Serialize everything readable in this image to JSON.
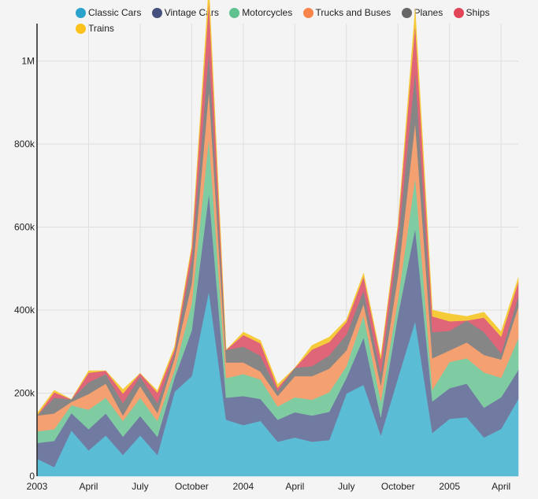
{
  "chart_data": {
    "type": "area",
    "stacked": true,
    "title": "",
    "xlabel": "",
    "ylabel": "",
    "ylim": [
      0,
      1090000
    ],
    "grid": true,
    "legend_position": "top",
    "x": [
      "2003-01",
      "2003-02",
      "2003-03",
      "2003-04",
      "2003-05",
      "2003-06",
      "2003-07",
      "2003-08",
      "2003-09",
      "2003-10",
      "2003-11",
      "2003-12",
      "2004-01",
      "2004-02",
      "2004-03",
      "2004-04",
      "2004-05",
      "2004-06",
      "2004-07",
      "2004-08",
      "2004-09",
      "2004-10",
      "2004-11",
      "2004-12",
      "2005-01",
      "2005-02",
      "2005-03",
      "2005-04",
      "2005-05"
    ],
    "x_ticks": [
      {
        "index": 0,
        "label": "2003"
      },
      {
        "index": 3,
        "label": "April"
      },
      {
        "index": 6,
        "label": "July"
      },
      {
        "index": 9,
        "label": "October"
      },
      {
        "index": 12,
        "label": "2004"
      },
      {
        "index": 15,
        "label": "April"
      },
      {
        "index": 18,
        "label": "July"
      },
      {
        "index": 21,
        "label": "October"
      },
      {
        "index": 24,
        "label": "2005"
      },
      {
        "index": 27,
        "label": "April"
      }
    ],
    "y_ticks": [
      {
        "value": 0,
        "label": "0"
      },
      {
        "value": 200000,
        "label": "200k"
      },
      {
        "value": 400000,
        "label": "400k"
      },
      {
        "value": 600000,
        "label": "600k"
      },
      {
        "value": 800000,
        "label": "800k"
      },
      {
        "value": 1000000,
        "label": "1M"
      }
    ],
    "series": [
      {
        "name": "Classic Cars",
        "color": "#5bbcd6",
        "values": [
          42000,
          22000,
          110000,
          62000,
          98000,
          51000,
          98000,
          51000,
          203000,
          241000,
          445000,
          136000,
          123000,
          133000,
          83000,
          93000,
          83000,
          87000,
          199000,
          220000,
          98000,
          237000,
          373000,
          104000,
          138000,
          142000,
          93000,
          114000,
          186000
        ]
      },
      {
        "name": "Vintage Cars",
        "color": "#717ba1",
        "values": [
          38000,
          63000,
          42000,
          51000,
          53000,
          44000,
          47000,
          44000,
          34000,
          110000,
          237000,
          53000,
          70000,
          53000,
          53000,
          61000,
          63000,
          68000,
          38000,
          114000,
          44000,
          152000,
          224000,
          76000,
          74000,
          81000,
          72000,
          76000,
          70000
        ]
      },
      {
        "name": "Motorcycles",
        "color": "#7fcca3",
        "values": [
          28000,
          28000,
          19000,
          47000,
          38000,
          38000,
          44000,
          38000,
          19000,
          66000,
          133000,
          47000,
          53000,
          47000,
          32000,
          36000,
          38000,
          47000,
          28000,
          53000,
          38000,
          38000,
          123000,
          28000,
          63000,
          61000,
          85000,
          47000,
          76000
        ]
      },
      {
        "name": "Trucks and Buses",
        "color": "#f5a070",
        "values": [
          38000,
          38000,
          8000,
          38000,
          34000,
          13000,
          28000,
          19000,
          28000,
          47000,
          114000,
          38000,
          28000,
          19000,
          25000,
          51000,
          57000,
          57000,
          38000,
          28000,
          38000,
          57000,
          133000,
          76000,
          28000,
          38000,
          42000,
          44000,
          76000
        ]
      },
      {
        "name": "Planes",
        "color": "#868686",
        "values": [
          0,
          38000,
          6000,
          28000,
          23000,
          30000,
          23000,
          24000,
          12000,
          57000,
          97000,
          30000,
          38000,
          38000,
          12000,
          20000,
          24000,
          32000,
          38000,
          32000,
          30000,
          80000,
          123000,
          63000,
          47000,
          53000,
          55000,
          15000,
          25000
        ]
      },
      {
        "name": "Ships",
        "color": "#df6579",
        "values": [
          0,
          13000,
          0,
          23000,
          8000,
          23000,
          8000,
          25000,
          10000,
          28000,
          121000,
          0,
          28000,
          30000,
          8000,
          0,
          40000,
          32000,
          30000,
          34000,
          34000,
          38000,
          114000,
          38000,
          23000,
          0,
          35000,
          40000,
          35000
        ]
      },
      {
        "name": "Trains",
        "color": "#f6cb39",
        "values": [
          5000,
          5000,
          0,
          5000,
          0,
          10000,
          0,
          5000,
          6000,
          6000,
          35000,
          0,
          7000,
          7000,
          8000,
          0,
          10000,
          12000,
          6000,
          8000,
          6000,
          6000,
          35000,
          15000,
          18000,
          10000,
          13000,
          12000,
          10000
        ]
      }
    ]
  },
  "legend": {
    "items": [
      {
        "label": "Classic Cars",
        "color": "#2aa3cc"
      },
      {
        "label": "Vintage Cars",
        "color": "#46507f"
      },
      {
        "label": "Motorcycles",
        "color": "#5fc18e"
      },
      {
        "label": "Trucks and Buses",
        "color": "#f9844a"
      },
      {
        "label": "Planes",
        "color": "#666666"
      },
      {
        "label": "Ships",
        "color": "#e14557"
      },
      {
        "label": "Trains",
        "color": "#fcc21b"
      }
    ]
  }
}
